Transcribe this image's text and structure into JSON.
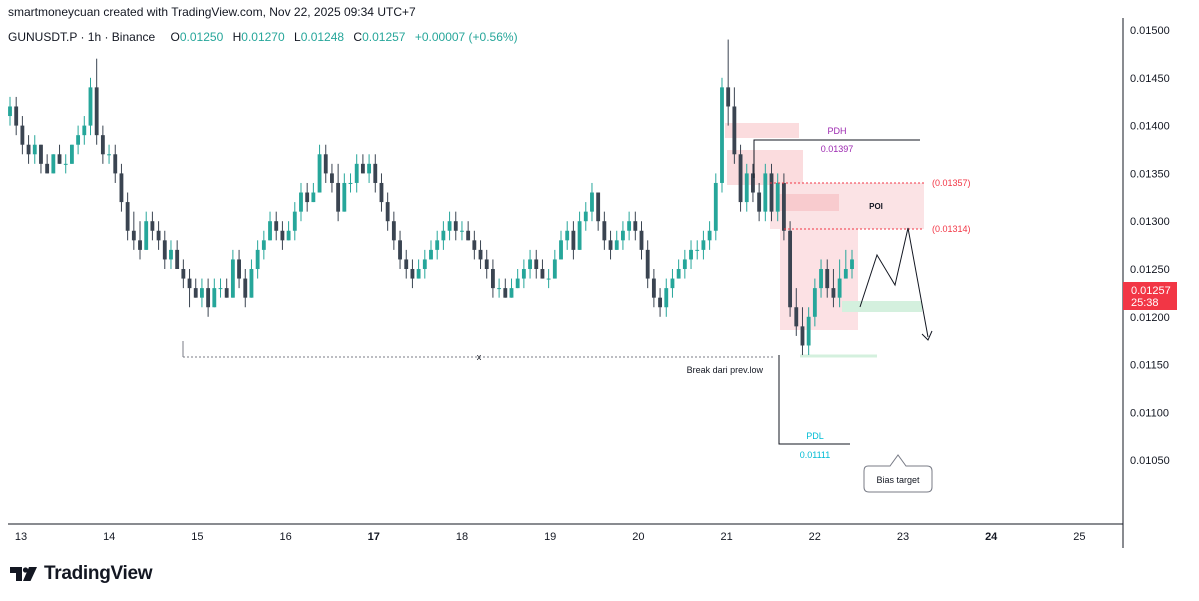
{
  "header": {
    "credit": "smartmoneycuan created with TradingView.com, Nov 22, 2025 09:34 UTC+7"
  },
  "symbol_bar": {
    "symbol": "GUNUSDT.P · 1h · Binance",
    "open_label": "O",
    "open": "0.01250",
    "high_label": "H",
    "high": "0.01270",
    "low_label": "L",
    "low": "0.01248",
    "close_label": "C",
    "close": "0.01257",
    "change": "+0.00007 (+0.56%)"
  },
  "footer": {
    "brand": "TradingView",
    "logo_icon": "tradingview-logo-icon"
  },
  "colors": {
    "up": "#26a69a",
    "down": "#3a4451",
    "red": "#f23645",
    "pdh": "#9c27b0",
    "pdl": "#00bcd4",
    "zone": "#f9d0d3",
    "green_zone": "#d4f0de"
  },
  "chart_data": {
    "type": "candlestick",
    "title": "",
    "y_ticks": [
      "0.01500",
      "0.01450",
      "0.01400",
      "0.01350",
      "0.01300",
      "0.01250",
      "0.01200",
      "0.01150",
      "0.01100",
      "0.01050"
    ],
    "ylim": [
      0.0103,
      0.0151
    ],
    "x_ticks": [
      "13",
      "14",
      "15",
      "16",
      "17",
      "18",
      "19",
      "20",
      "21",
      "22",
      "23",
      "24",
      "25"
    ],
    "last_price_label": "0.01257",
    "countdown_label": "25:38",
    "annotations": {
      "pdh_label": "PDH",
      "pdh_value": "0.01397",
      "pdh_price": 0.01397,
      "pdl_label": "PDL",
      "pdl_value": "0.01111",
      "pdl_price": 0.01111,
      "level_1_label": "(0.01357)",
      "level_1_price": 0.01357,
      "level_2_label": "(0.01314)",
      "level_2_price": 0.01314,
      "poi_label": "POI",
      "break_label": "Break dari prev.low",
      "break_marker": "x",
      "prev_low_price": 0.01193,
      "bias_label": "Bias target"
    },
    "candles": [
      [
        0.0141,
        0.0143,
        0.014,
        0.0142
      ],
      [
        0.0142,
        0.0143,
        0.0139,
        0.014
      ],
      [
        0.014,
        0.0141,
        0.0137,
        0.0138
      ],
      [
        0.0138,
        0.0139,
        0.0136,
        0.0137
      ],
      [
        0.0137,
        0.0139,
        0.0136,
        0.0138
      ],
      [
        0.0138,
        0.0138,
        0.0135,
        0.0136
      ],
      [
        0.0136,
        0.0137,
        0.0135,
        0.0135
      ],
      [
        0.0135,
        0.0137,
        0.0135,
        0.0137
      ],
      [
        0.0137,
        0.0138,
        0.0136,
        0.0136
      ],
      [
        0.0136,
        0.0137,
        0.0135,
        0.0136
      ],
      [
        0.0136,
        0.0138,
        0.0136,
        0.0138
      ],
      [
        0.0138,
        0.014,
        0.0137,
        0.0139
      ],
      [
        0.0139,
        0.0141,
        0.0138,
        0.014
      ],
      [
        0.014,
        0.0145,
        0.0139,
        0.0144
      ],
      [
        0.0144,
        0.0147,
        0.0138,
        0.0139
      ],
      [
        0.0139,
        0.014,
        0.0136,
        0.0137
      ],
      [
        0.0137,
        0.0138,
        0.0136,
        0.0137
      ],
      [
        0.0137,
        0.0138,
        0.0134,
        0.0135
      ],
      [
        0.0135,
        0.0136,
        0.0131,
        0.0132
      ],
      [
        0.0132,
        0.0133,
        0.0128,
        0.0129
      ],
      [
        0.0129,
        0.0131,
        0.0127,
        0.0128
      ],
      [
        0.0128,
        0.013,
        0.0126,
        0.0127
      ],
      [
        0.0127,
        0.0131,
        0.0127,
        0.013
      ],
      [
        0.013,
        0.0131,
        0.0128,
        0.0129
      ],
      [
        0.0129,
        0.013,
        0.0127,
        0.0128
      ],
      [
        0.0128,
        0.0129,
        0.0125,
        0.0126
      ],
      [
        0.0126,
        0.0128,
        0.0125,
        0.0127
      ],
      [
        0.0127,
        0.0128,
        0.0125,
        0.0125
      ],
      [
        0.0125,
        0.0126,
        0.0123,
        0.0124
      ],
      [
        0.0124,
        0.0125,
        0.0121,
        0.0123
      ],
      [
        0.0123,
        0.0124,
        0.0122,
        0.0122
      ],
      [
        0.0122,
        0.0124,
        0.0121,
        0.0123
      ],
      [
        0.0123,
        0.0124,
        0.012,
        0.0121
      ],
      [
        0.0121,
        0.0124,
        0.0121,
        0.0123
      ],
      [
        0.0123,
        0.0124,
        0.0122,
        0.0123
      ],
      [
        0.0123,
        0.0124,
        0.0122,
        0.0122
      ],
      [
        0.0122,
        0.0127,
        0.0122,
        0.0126
      ],
      [
        0.0126,
        0.0127,
        0.0123,
        0.0124
      ],
      [
        0.0124,
        0.0125,
        0.0121,
        0.0122
      ],
      [
        0.0122,
        0.0126,
        0.0122,
        0.0125
      ],
      [
        0.0125,
        0.0128,
        0.0124,
        0.0127
      ],
      [
        0.0127,
        0.0129,
        0.0126,
        0.0128
      ],
      [
        0.0128,
        0.0131,
        0.0128,
        0.013
      ],
      [
        0.013,
        0.0131,
        0.0128,
        0.0129
      ],
      [
        0.0129,
        0.013,
        0.0127,
        0.0128
      ],
      [
        0.0128,
        0.013,
        0.0128,
        0.0129
      ],
      [
        0.0129,
        0.0132,
        0.0128,
        0.0131
      ],
      [
        0.0131,
        0.0134,
        0.013,
        0.0133
      ],
      [
        0.0133,
        0.0134,
        0.0131,
        0.0132
      ],
      [
        0.0132,
        0.0134,
        0.0132,
        0.0133
      ],
      [
        0.0133,
        0.0138,
        0.0133,
        0.0137
      ],
      [
        0.0137,
        0.0138,
        0.0134,
        0.0135
      ],
      [
        0.0135,
        0.0136,
        0.0133,
        0.0134
      ],
      [
        0.0134,
        0.0136,
        0.013,
        0.0131
      ],
      [
        0.0131,
        0.0135,
        0.0131,
        0.0134
      ],
      [
        0.0134,
        0.0135,
        0.0133,
        0.0134
      ],
      [
        0.0134,
        0.0137,
        0.0133,
        0.0136
      ],
      [
        0.0136,
        0.0137,
        0.0135,
        0.0135
      ],
      [
        0.0135,
        0.0137,
        0.0134,
        0.0136
      ],
      [
        0.0136,
        0.0137,
        0.0133,
        0.0134
      ],
      [
        0.0134,
        0.0135,
        0.0131,
        0.0132
      ],
      [
        0.0132,
        0.0133,
        0.0129,
        0.013
      ],
      [
        0.013,
        0.0131,
        0.0127,
        0.0128
      ],
      [
        0.0128,
        0.0129,
        0.0125,
        0.0126
      ],
      [
        0.0126,
        0.0127,
        0.0124,
        0.0125
      ],
      [
        0.0125,
        0.0126,
        0.0123,
        0.0124
      ],
      [
        0.0124,
        0.0126,
        0.0124,
        0.0125
      ],
      [
        0.0125,
        0.0127,
        0.0124,
        0.0126
      ],
      [
        0.0126,
        0.0128,
        0.0126,
        0.0127
      ],
      [
        0.0127,
        0.0129,
        0.0126,
        0.0128
      ],
      [
        0.0128,
        0.013,
        0.0127,
        0.0129
      ],
      [
        0.0129,
        0.0131,
        0.0128,
        0.013
      ],
      [
        0.013,
        0.0131,
        0.0128,
        0.0129
      ],
      [
        0.0129,
        0.013,
        0.0128,
        0.0129
      ],
      [
        0.0129,
        0.013,
        0.0128,
        0.0128
      ],
      [
        0.0128,
        0.0129,
        0.0126,
        0.0127
      ],
      [
        0.0127,
        0.0128,
        0.0125,
        0.0126
      ],
      [
        0.0126,
        0.0127,
        0.0124,
        0.0125
      ],
      [
        0.0125,
        0.0126,
        0.0122,
        0.0123
      ],
      [
        0.0123,
        0.0124,
        0.0122,
        0.0123
      ],
      [
        0.0123,
        0.0124,
        0.0122,
        0.0122
      ],
      [
        0.0122,
        0.0124,
        0.0122,
        0.0123
      ],
      [
        0.0123,
        0.0125,
        0.0123,
        0.0124
      ],
      [
        0.0124,
        0.0126,
        0.0123,
        0.0125
      ],
      [
        0.0125,
        0.0127,
        0.0124,
        0.0126
      ],
      [
        0.0126,
        0.0127,
        0.0124,
        0.0125
      ],
      [
        0.0125,
        0.0126,
        0.0124,
        0.0124
      ],
      [
        0.0124,
        0.0125,
        0.0123,
        0.0124
      ],
      [
        0.0124,
        0.0127,
        0.0124,
        0.0126
      ],
      [
        0.0126,
        0.0129,
        0.0126,
        0.0128
      ],
      [
        0.0128,
        0.013,
        0.0127,
        0.0129
      ],
      [
        0.0129,
        0.013,
        0.0126,
        0.0127
      ],
      [
        0.0127,
        0.0131,
        0.0127,
        0.013
      ],
      [
        0.013,
        0.0132,
        0.0129,
        0.0131
      ],
      [
        0.0131,
        0.0134,
        0.013,
        0.0133
      ],
      [
        0.0133,
        0.0133,
        0.0129,
        0.013
      ],
      [
        0.013,
        0.0131,
        0.0127,
        0.0128
      ],
      [
        0.0128,
        0.0129,
        0.0126,
        0.0127
      ],
      [
        0.0127,
        0.0129,
        0.0127,
        0.0128
      ],
      [
        0.0128,
        0.013,
        0.0127,
        0.0129
      ],
      [
        0.0129,
        0.0131,
        0.0128,
        0.013
      ],
      [
        0.013,
        0.0131,
        0.0128,
        0.0129
      ],
      [
        0.0129,
        0.013,
        0.0126,
        0.0127
      ],
      [
        0.0127,
        0.0128,
        0.0123,
        0.0124
      ],
      [
        0.0124,
        0.0125,
        0.0121,
        0.0122
      ],
      [
        0.0122,
        0.0123,
        0.012,
        0.0121
      ],
      [
        0.0121,
        0.0124,
        0.012,
        0.0123
      ],
      [
        0.0123,
        0.0125,
        0.0122,
        0.0124
      ],
      [
        0.0124,
        0.0126,
        0.0124,
        0.0125
      ],
      [
        0.0125,
        0.0127,
        0.0124,
        0.0126
      ],
      [
        0.0126,
        0.0128,
        0.0125,
        0.0127
      ],
      [
        0.0127,
        0.0128,
        0.0126,
        0.0127
      ],
      [
        0.0127,
        0.0129,
        0.0126,
        0.0128
      ],
      [
        0.0128,
        0.013,
        0.0127,
        0.0129
      ],
      [
        0.0129,
        0.0135,
        0.0128,
        0.0134
      ],
      [
        0.0134,
        0.0145,
        0.0133,
        0.0144
      ],
      [
        0.0144,
        0.0149,
        0.014,
        0.0142
      ],
      [
        0.0142,
        0.0144,
        0.0136,
        0.0137
      ],
      [
        0.0137,
        0.0138,
        0.0131,
        0.0132
      ],
      [
        0.0132,
        0.0136,
        0.0131,
        0.0135
      ],
      [
        0.0135,
        0.0136,
        0.0132,
        0.0133
      ],
      [
        0.0133,
        0.0134,
        0.013,
        0.0131
      ],
      [
        0.0131,
        0.0136,
        0.013,
        0.0135
      ],
      [
        0.0135,
        0.0136,
        0.013,
        0.0131
      ],
      [
        0.0131,
        0.0135,
        0.013,
        0.0134
      ],
      [
        0.0134,
        0.0135,
        0.0128,
        0.0129
      ],
      [
        0.0129,
        0.013,
        0.012,
        0.0121
      ],
      [
        0.0121,
        0.0123,
        0.0118,
        0.0119
      ],
      [
        0.0119,
        0.0121,
        0.0116,
        0.0117
      ],
      [
        0.0117,
        0.0121,
        0.0116,
        0.012
      ],
      [
        0.012,
        0.0124,
        0.0119,
        0.0123
      ],
      [
        0.0123,
        0.0126,
        0.0122,
        0.0125
      ],
      [
        0.0125,
        0.0126,
        0.0122,
        0.0123
      ],
      [
        0.0123,
        0.0125,
        0.0121,
        0.0122
      ],
      [
        0.0122,
        0.0126,
        0.0121,
        0.0124
      ],
      [
        0.0124,
        0.0127,
        0.0124,
        0.0125
      ],
      [
        0.0125,
        0.0127,
        0.0124,
        0.0126
      ]
    ]
  }
}
